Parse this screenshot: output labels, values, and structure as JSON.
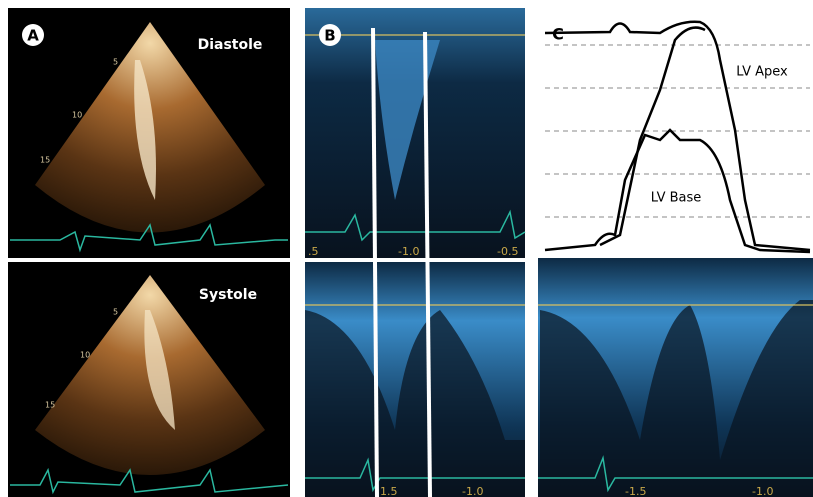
{
  "panel_a": {
    "label": "A",
    "top": {
      "caption": "Diastole",
      "depth_labels": [
        "5",
        "10",
        "15"
      ]
    },
    "bottom": {
      "caption": "Systole",
      "depth_labels": [
        "5",
        "10",
        "15"
      ]
    }
  },
  "panel_b": {
    "label": "B",
    "top_scale": [
      ".5",
      "-1.0",
      "-0.5"
    ],
    "bottom_scale": [
      "1.5",
      "-1.0"
    ]
  },
  "panel_c": {
    "label": "C",
    "traces": [
      "LV Apex",
      "LV Base"
    ],
    "bottom_scale": [
      "-1.5",
      "-1.0"
    ]
  }
}
